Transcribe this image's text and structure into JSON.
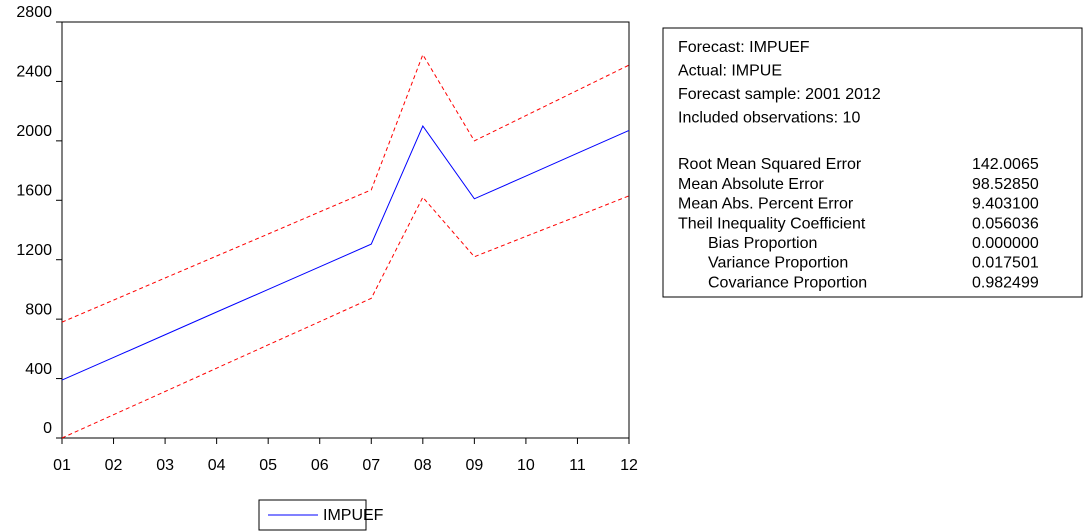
{
  "chart_data": {
    "type": "line",
    "categories": [
      "01",
      "02",
      "03",
      "04",
      "05",
      "06",
      "07",
      "08",
      "09",
      "10",
      "11",
      "12"
    ],
    "series": [
      {
        "name": "IMPUEF",
        "color": "#0000ff",
        "style": "solid",
        "values": [
          390,
          542,
          695,
          848,
          1000,
          1152,
          1305,
          2100,
          1610,
          1763,
          1917,
          2070
        ]
      },
      {
        "color": "#ff0000",
        "style": "dashed",
        "values": [
          780,
          928,
          1077,
          1225,
          1373,
          1522,
          1670,
          2580,
          2000,
          2170,
          2340,
          2510
        ]
      },
      {
        "color": "#ff0000",
        "style": "dashed",
        "values": [
          0,
          157,
          313,
          470,
          627,
          783,
          940,
          1620,
          1220,
          1357,
          1493,
          1630
        ]
      }
    ],
    "ylim": [
      0,
      2800
    ],
    "yticks": [
      0,
      400,
      800,
      1200,
      1600,
      2000,
      2400,
      2800
    ]
  },
  "stats_box": {
    "header": [
      "Forecast: IMPUEF",
      "Actual: IMPUE",
      "Forecast sample: 2001 2012",
      "Included observations: 10"
    ],
    "rows": [
      {
        "label": "Root Mean Squared Error",
        "value": "142.0065"
      },
      {
        "label": "Mean Absolute Error",
        "value": "98.52850"
      },
      {
        "label": "Mean Abs. Percent Error",
        "value": "9.403100"
      },
      {
        "label": "Theil Inequality Coefficient",
        "value": "0.056036"
      },
      {
        "label": "Bias Proportion",
        "value": "0.000000"
      },
      {
        "label": "Variance Proportion",
        "value": "0.017501"
      },
      {
        "label": "Covariance Proportion",
        "value": "0.982499"
      }
    ]
  }
}
